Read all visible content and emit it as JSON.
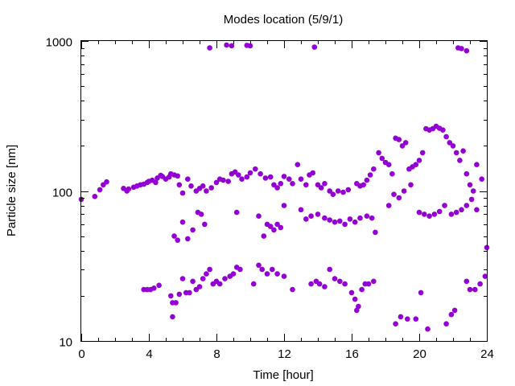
{
  "chart_data": {
    "type": "scatter",
    "title": "Modes location (5/9/1)",
    "xlabel": "Time [hour]",
    "ylabel": "Particle size [nm]",
    "xlim": [
      0,
      24
    ],
    "ylim": [
      10,
      1000
    ],
    "yscale": "log",
    "grid": false,
    "x_ticks": [
      0,
      4,
      8,
      12,
      16,
      20,
      24
    ],
    "x_tick_labels": [
      "0",
      "4",
      "8",
      "12",
      "16",
      "20",
      "24"
    ],
    "y_ticks": [
      10,
      100,
      1000
    ],
    "y_tick_labels": [
      "10",
      "100",
      "1000"
    ],
    "marker_color": "#9400d3",
    "series": [
      {
        "values": [
          [
            0.0,
            88
          ],
          [
            0.8,
            92
          ],
          [
            1.1,
            102
          ],
          [
            1.3,
            110
          ],
          [
            1.5,
            115
          ],
          [
            2.5,
            104
          ],
          [
            2.7,
            100
          ],
          [
            2.8,
            103
          ],
          [
            3.1,
            106
          ],
          [
            3.3,
            108
          ],
          [
            3.5,
            110
          ],
          [
            3.7,
            111
          ],
          [
            3.9,
            114
          ],
          [
            4.0,
            116
          ],
          [
            4.2,
            118
          ],
          [
            4.4,
            114
          ],
          [
            4.5,
            122
          ],
          [
            4.7,
            127
          ],
          [
            4.8,
            125
          ],
          [
            5.0,
            120
          ],
          [
            5.2,
            124
          ],
          [
            5.3,
            130
          ],
          [
            5.5,
            128
          ],
          [
            5.7,
            126
          ],
          [
            5.8,
            110
          ],
          [
            6.0,
            97
          ],
          [
            6.3,
            120
          ],
          [
            6.5,
            108
          ],
          [
            6.8,
            100
          ],
          [
            7.0,
            104
          ],
          [
            7.2,
            108
          ],
          [
            7.4,
            100
          ],
          [
            7.7,
            105
          ],
          [
            8.0,
            114
          ],
          [
            8.2,
            120
          ],
          [
            8.4,
            118
          ],
          [
            8.7,
            116
          ],
          [
            8.9,
            130
          ],
          [
            9.1,
            134
          ],
          [
            9.3,
            128
          ],
          [
            9.5,
            120
          ],
          [
            9.8,
            124
          ],
          [
            10.0,
            132
          ],
          [
            10.3,
            140
          ],
          [
            10.6,
            130
          ],
          [
            10.9,
            122
          ],
          [
            11.2,
            124
          ],
          [
            11.4,
            110
          ],
          [
            11.6,
            105
          ],
          [
            11.8,
            112
          ],
          [
            12.0,
            125
          ],
          [
            12.3,
            120
          ],
          [
            12.5,
            112
          ],
          [
            12.8,
            150
          ],
          [
            13.0,
            120
          ],
          [
            13.3,
            110
          ],
          [
            13.5,
            128
          ],
          [
            13.7,
            132
          ],
          [
            14.0,
            110
          ],
          [
            14.2,
            105
          ],
          [
            14.4,
            112
          ],
          [
            14.7,
            100
          ],
          [
            14.9,
            95
          ],
          [
            15.2,
            100
          ],
          [
            15.5,
            98
          ],
          [
            15.8,
            102
          ],
          [
            16.3,
            112
          ],
          [
            16.5,
            108
          ],
          [
            16.7,
            110
          ],
          [
            16.9,
            118
          ],
          [
            17.1,
            128
          ],
          [
            17.3,
            140
          ],
          [
            17.6,
            180
          ],
          [
            17.8,
            165
          ],
          [
            18.0,
            155
          ],
          [
            18.2,
            150
          ],
          [
            18.4,
            130
          ],
          [
            18.6,
            225
          ],
          [
            18.8,
            220
          ],
          [
            19.0,
            200
          ],
          [
            19.2,
            210
          ],
          [
            19.4,
            140
          ],
          [
            19.6,
            145
          ],
          [
            19.8,
            150
          ],
          [
            20.0,
            160
          ],
          [
            20.2,
            180
          ],
          [
            20.4,
            260
          ],
          [
            20.6,
            255
          ],
          [
            20.8,
            260
          ],
          [
            21.0,
            270
          ],
          [
            21.2,
            262
          ],
          [
            21.4,
            255
          ],
          [
            21.6,
            230
          ],
          [
            21.8,
            210
          ],
          [
            22.0,
            200
          ],
          [
            22.2,
            180
          ],
          [
            22.4,
            160
          ],
          [
            22.6,
            185
          ],
          [
            22.8,
            130
          ],
          [
            23.0,
            110
          ],
          [
            23.2,
            100
          ],
          [
            23.4,
            150
          ],
          [
            23.7,
            120
          ],
          [
            5.5,
            50
          ],
          [
            5.7,
            47
          ],
          [
            6.0,
            62
          ],
          [
            6.3,
            48
          ],
          [
            6.6,
            55
          ],
          [
            6.9,
            72
          ],
          [
            7.1,
            70
          ],
          [
            7.3,
            60
          ],
          [
            9.2,
            72
          ],
          [
            10.5,
            68
          ],
          [
            10.8,
            50
          ],
          [
            11.0,
            60
          ],
          [
            11.2,
            58
          ],
          [
            11.4,
            55
          ],
          [
            11.6,
            60
          ],
          [
            11.8,
            57
          ],
          [
            12.0,
            80
          ],
          [
            13.0,
            75
          ],
          [
            13.3,
            65
          ],
          [
            13.6,
            68
          ],
          [
            14.0,
            70
          ],
          [
            14.4,
            66
          ],
          [
            14.7,
            64
          ],
          [
            15.0,
            62
          ],
          [
            15.3,
            63
          ],
          [
            15.6,
            60
          ],
          [
            15.9,
            65
          ],
          [
            16.2,
            62
          ],
          [
            16.5,
            66
          ],
          [
            16.9,
            68
          ],
          [
            17.2,
            66
          ],
          [
            17.4,
            53
          ],
          [
            18.2,
            80
          ],
          [
            18.5,
            95
          ],
          [
            18.8,
            90
          ],
          [
            19.1,
            100
          ],
          [
            19.5,
            110
          ],
          [
            20.0,
            72
          ],
          [
            20.3,
            70
          ],
          [
            20.6,
            68
          ],
          [
            20.9,
            70
          ],
          [
            21.2,
            73
          ],
          [
            21.5,
            80
          ],
          [
            21.9,
            70
          ],
          [
            22.2,
            72
          ],
          [
            22.5,
            75
          ],
          [
            22.8,
            80
          ],
          [
            23.1,
            88
          ],
          [
            23.4,
            75
          ],
          [
            24.0,
            42
          ],
          [
            3.7,
            22
          ],
          [
            3.9,
            22
          ],
          [
            4.1,
            22
          ],
          [
            4.3,
            22.5
          ],
          [
            4.6,
            23.5
          ],
          [
            5.3,
            20
          ],
          [
            5.4,
            18
          ],
          [
            5.6,
            18
          ],
          [
            5.8,
            20.5
          ],
          [
            6.0,
            26
          ],
          [
            6.2,
            21
          ],
          [
            6.4,
            21
          ],
          [
            6.6,
            25
          ],
          [
            6.8,
            22
          ],
          [
            7.0,
            23
          ],
          [
            7.2,
            26
          ],
          [
            7.4,
            28
          ],
          [
            7.6,
            30
          ],
          [
            7.8,
            24
          ],
          [
            8.0,
            25
          ],
          [
            8.2,
            24
          ],
          [
            8.5,
            26
          ],
          [
            8.8,
            27
          ],
          [
            9.0,
            28
          ],
          [
            9.2,
            31
          ],
          [
            9.4,
            30
          ],
          [
            10.2,
            24
          ],
          [
            10.5,
            32
          ],
          [
            10.7,
            30
          ],
          [
            11.0,
            28
          ],
          [
            11.3,
            30
          ],
          [
            11.6,
            28
          ],
          [
            12.0,
            27
          ],
          [
            12.5,
            22
          ],
          [
            13.6,
            24
          ],
          [
            13.9,
            25
          ],
          [
            14.1,
            24
          ],
          [
            14.4,
            23
          ],
          [
            14.7,
            30
          ],
          [
            15.0,
            26
          ],
          [
            15.3,
            25
          ],
          [
            15.6,
            24
          ],
          [
            16.0,
            21
          ],
          [
            16.2,
            19
          ],
          [
            16.4,
            17
          ],
          [
            16.6,
            22
          ],
          [
            16.8,
            24
          ],
          [
            17.0,
            24
          ],
          [
            17.3,
            25
          ],
          [
            5.4,
            14.5
          ],
          [
            16.3,
            16
          ],
          [
            18.6,
            13
          ],
          [
            18.9,
            14.5
          ],
          [
            19.3,
            14
          ],
          [
            19.8,
            14
          ],
          [
            20.1,
            21
          ],
          [
            20.5,
            12
          ],
          [
            21.6,
            13
          ],
          [
            21.9,
            15
          ],
          [
            22.1,
            16
          ],
          [
            22.8,
            25
          ],
          [
            23.0,
            22
          ],
          [
            23.3,
            22
          ],
          [
            23.6,
            24
          ],
          [
            23.9,
            27
          ],
          [
            7.6,
            900
          ],
          [
            8.6,
            940
          ],
          [
            8.9,
            930
          ],
          [
            9.8,
            935
          ],
          [
            10.0,
            930
          ],
          [
            13.8,
            910
          ],
          [
            22.3,
            900
          ],
          [
            22.5,
            890
          ],
          [
            22.8,
            860
          ]
        ]
      }
    ]
  }
}
